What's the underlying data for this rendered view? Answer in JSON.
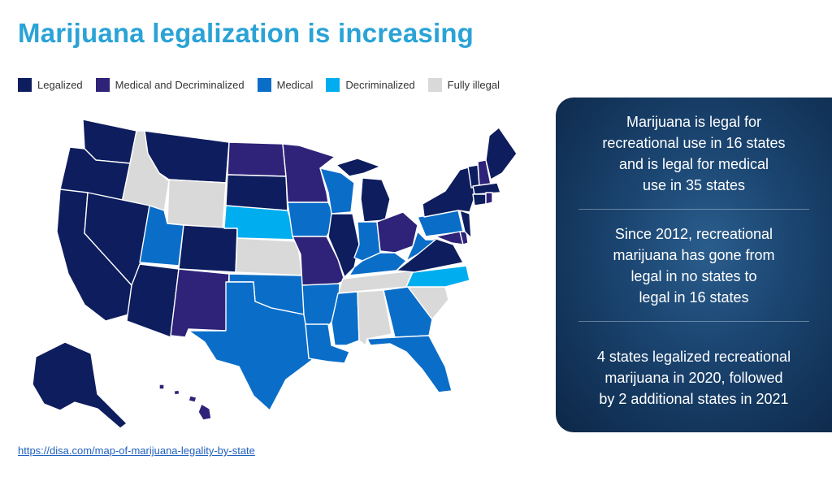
{
  "title": "Marijuana legalization is increasing",
  "legend": [
    {
      "label": "Legalized",
      "color": "#0d1d5e"
    },
    {
      "label": "Medical and Decriminalized",
      "color": "#2e2378"
    },
    {
      "label": "Medical",
      "color": "#0a6ec9"
    },
    {
      "label": "Decriminalized",
      "color": "#00aeef"
    },
    {
      "label": "Fully illegal",
      "color": "#d9d9d9"
    }
  ],
  "panel": [
    {
      "text": "Marijuana is legal for\nrecreational use in 16 states\nand is legal for medical\nuse in 35 states"
    },
    {
      "text": "Since 2012, recreational\nmarijuana has gone from\nlegal in no states to\nlegal in 16 states"
    },
    {
      "text": "4 states legalized recreational\nmarijuana in 2020, followed\nby 2 additional states in 2021"
    }
  ],
  "source": "https://disa.com/map-of-marijuana-legality-by-state"
}
